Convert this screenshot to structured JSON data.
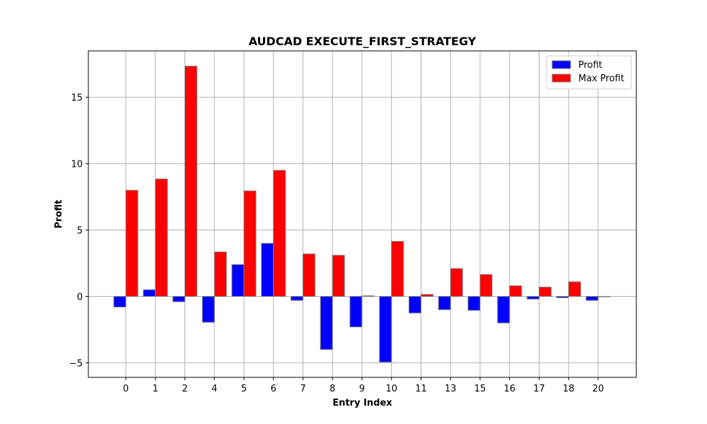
{
  "chart_data": {
    "type": "bar",
    "title": "AUDCAD EXECUTE_FIRST_STRATEGY",
    "xlabel": "Entry Index",
    "ylabel": "Profit",
    "categories": [
      "0",
      "1",
      "2",
      "4",
      "5",
      "6",
      "7",
      "8",
      "9",
      "10",
      "11",
      "13",
      "15",
      "16",
      "17",
      "18",
      "20"
    ],
    "series": [
      {
        "name": "Profit",
        "color": "#0000ff",
        "values": [
          -0.8,
          0.5,
          -0.4,
          -1.95,
          2.4,
          4.0,
          -0.3,
          -4.0,
          -2.3,
          -4.95,
          -1.25,
          -1.0,
          -1.05,
          -2.0,
          -0.2,
          -0.1,
          -0.3
        ]
      },
      {
        "name": "Max Profit",
        "color": "#ff0000",
        "values": [
          8.0,
          8.85,
          17.35,
          3.35,
          7.95,
          9.5,
          3.2,
          3.1,
          0.05,
          4.15,
          0.15,
          2.1,
          1.65,
          0.8,
          0.7,
          1.1,
          0.0
        ]
      }
    ],
    "ylim": [
      -6.1,
      18.5
    ],
    "yticks": [
      -5,
      0,
      5,
      10,
      15
    ],
    "ytick_labels": [
      "−5",
      "0",
      "5",
      "10",
      "15"
    ],
    "grid": true,
    "legend_position": "top-right",
    "bar_edge_color": "#808080"
  }
}
